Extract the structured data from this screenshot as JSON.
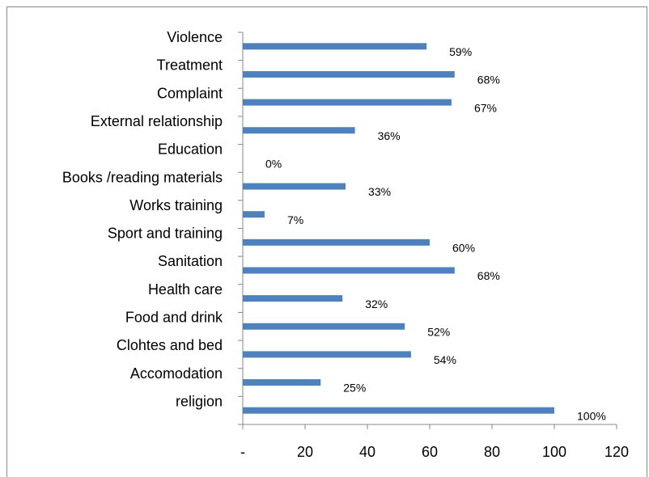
{
  "chart_data": {
    "type": "hbar",
    "categories": [
      "Violence",
      "Treatment",
      "Complaint",
      "External relationship",
      "Education",
      "Books /reading materials",
      "Works training",
      "Sport and training",
      "Sanitation",
      "Health care",
      "Food and drink",
      "Clohtes and  bed",
      "Accomodation",
      "religion"
    ],
    "values": [
      59,
      68,
      67,
      36,
      0,
      33,
      7,
      60,
      68,
      32,
      52,
      54,
      25,
      100
    ],
    "value_labels": [
      "59%",
      "68%",
      "67%",
      "36%",
      "0%",
      "33%",
      "7%",
      "60%",
      "68%",
      "32%",
      "52%",
      "54%",
      "25%",
      "100%"
    ],
    "color": "#4f81bd",
    "xlim": [
      0,
      120
    ],
    "xticks": [
      {
        "value": 0,
        "label": "-"
      },
      20,
      40,
      60,
      80,
      100,
      120
    ]
  }
}
